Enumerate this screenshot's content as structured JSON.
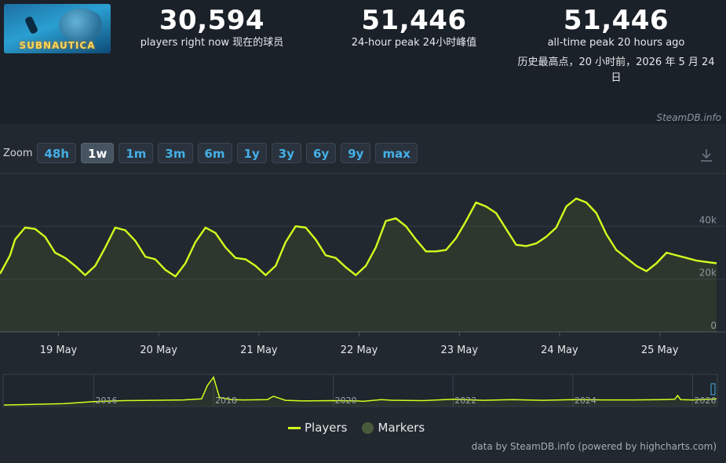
{
  "header": {
    "game_logo_text": "SUBNAUTICA",
    "players_now": {
      "value": "30,594",
      "label": "players right now  现在的球员"
    },
    "peak_24h": {
      "value": "51,446",
      "label": "24-hour peak  24小时峰值"
    },
    "all_time_peak": {
      "value": "51,446",
      "label": "all-time peak 20 hours ago",
      "sub": "历史最高点，20 小时前，2026 年 5 月 24 日"
    }
  },
  "credit_top": "SteamDB.info",
  "zoom": {
    "label": "Zoom",
    "buttons": [
      "48h",
      "1w",
      "1m",
      "3m",
      "6m",
      "1y",
      "3y",
      "6y",
      "9y",
      "max"
    ],
    "active": "1w"
  },
  "legend": {
    "players": "Players",
    "markers": "Markers"
  },
  "credit_bottom": "data by SteamDB.info (powered by highcharts.com)",
  "colors": {
    "series": "#d2ff1e",
    "accent": "#45aee6",
    "background": "#1b2129",
    "panel": "#22282f"
  },
  "chart_data": [
    {
      "type": "line",
      "series": [
        {
          "name": "Players",
          "x_days": [
            0.0,
            0.1,
            0.15,
            0.25,
            0.35,
            0.45,
            0.55,
            0.65,
            0.75,
            0.85,
            0.95,
            1.05,
            1.15,
            1.25,
            1.35,
            1.45,
            1.55,
            1.65,
            1.75,
            1.85,
            1.95,
            2.05,
            2.15,
            2.25,
            2.35,
            2.45,
            2.55,
            2.65,
            2.75,
            2.85,
            2.95,
            3.05,
            3.15,
            3.25,
            3.35,
            3.45,
            3.55,
            3.65,
            3.75,
            3.85,
            3.95,
            4.05,
            4.15,
            4.25,
            4.35,
            4.45,
            4.55,
            4.65,
            4.75,
            4.85,
            4.95,
            5.05,
            5.15,
            5.25,
            5.35,
            5.45,
            5.55,
            5.65,
            5.75,
            5.85,
            5.95,
            6.05,
            6.15,
            6.25,
            6.35,
            6.45,
            6.55,
            6.65,
            6.75,
            6.85,
            6.95,
            7.05,
            7.15
          ],
          "values": [
            22000,
            29000,
            35000,
            39500,
            39000,
            36000,
            30000,
            28000,
            25000,
            21500,
            25000,
            32000,
            39500,
            38500,
            34500,
            28500,
            27500,
            23500,
            21000,
            26000,
            34000,
            39500,
            37500,
            32000,
            28000,
            27500,
            25000,
            21500,
            25000,
            34000,
            40000,
            39500,
            35000,
            29000,
            28000,
            24500,
            21500,
            25000,
            32000,
            42000,
            43000,
            40000,
            35000,
            30500,
            30500,
            31000,
            35500,
            42000,
            49000,
            47500,
            45000,
            39000,
            33000,
            32500,
            33500,
            36000,
            39500,
            47500,
            50500,
            49000,
            45000,
            37000,
            31000,
            28000,
            25000,
            23000,
            26000,
            30000,
            29000,
            28000,
            27000,
            26500,
            26000
          ],
          "start": "2026-05-18T10:00",
          "end": "2026-05-25T12:00"
        }
      ],
      "x_tick_labels": [
        "19 May",
        "20 May",
        "21 May",
        "22 May",
        "23 May",
        "24 May",
        "25 May"
      ],
      "y_tick_labels": [
        "0",
        "20k",
        "40k"
      ],
      "ylim": [
        0,
        60000
      ],
      "grid": true,
      "legend": "bottom-center"
    },
    {
      "type": "area",
      "role": "navigator-overview",
      "x_years": [
        2014.5,
        2015,
        2015.5,
        2016,
        2016.5,
        2017,
        2017.5,
        2017.8,
        2017.9,
        2018.0,
        2018.1,
        2018.3,
        2018.5,
        2018.9,
        2019.0,
        2019.2,
        2019.5,
        2020,
        2020.4,
        2020.5,
        2020.8,
        2021,
        2021.5,
        2022,
        2022.5,
        2023,
        2023.5,
        2024,
        2024.5,
        2025,
        2025.5,
        2025.7,
        2025.75,
        2025.8,
        2026.0,
        2026.4
      ],
      "values": [
        1000,
        2000,
        3000,
        6000,
        7500,
        8000,
        8500,
        10000,
        30000,
        42000,
        12000,
        9000,
        8500,
        9000,
        14000,
        8000,
        7000,
        7500,
        7000,
        6500,
        9000,
        8000,
        7500,
        9500,
        8000,
        9000,
        8000,
        9000,
        8500,
        8500,
        9000,
        9500,
        15000,
        9000,
        8500,
        10000
      ],
      "x_tick_labels": [
        "2016",
        "2018",
        "2020",
        "2022",
        "2024",
        "2026"
      ]
    }
  ]
}
